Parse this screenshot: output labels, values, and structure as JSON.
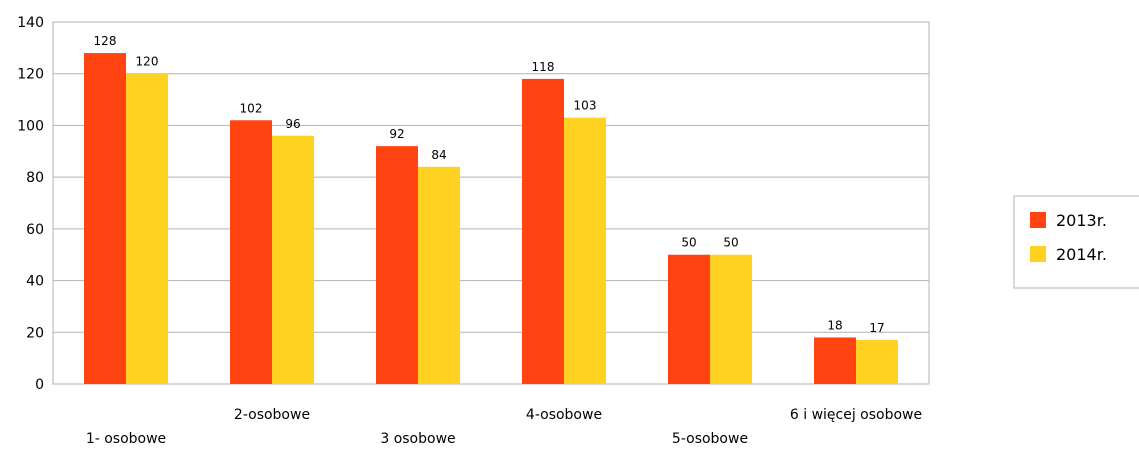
{
  "chart_data": {
    "type": "bar",
    "categories": [
      "1- osobowe",
      "2-osobowe",
      "3 osobowe",
      "4-osobowe",
      "5-osobowe",
      "6 i więcej osobowe"
    ],
    "series": [
      {
        "name": "2013r.",
        "values": [
          128,
          102,
          92,
          118,
          50,
          18
        ],
        "color": "#FF4412"
      },
      {
        "name": "2014r.",
        "values": [
          120,
          96,
          84,
          103,
          50,
          17
        ],
        "color": "#FFD221"
      }
    ],
    "title": "",
    "xlabel": "",
    "ylabel": "",
    "ylim": [
      0,
      140
    ],
    "yticks": [
      0,
      20,
      40,
      60,
      80,
      100,
      120,
      140
    ],
    "grid": true,
    "legend_position": "right",
    "data_labels": true
  }
}
